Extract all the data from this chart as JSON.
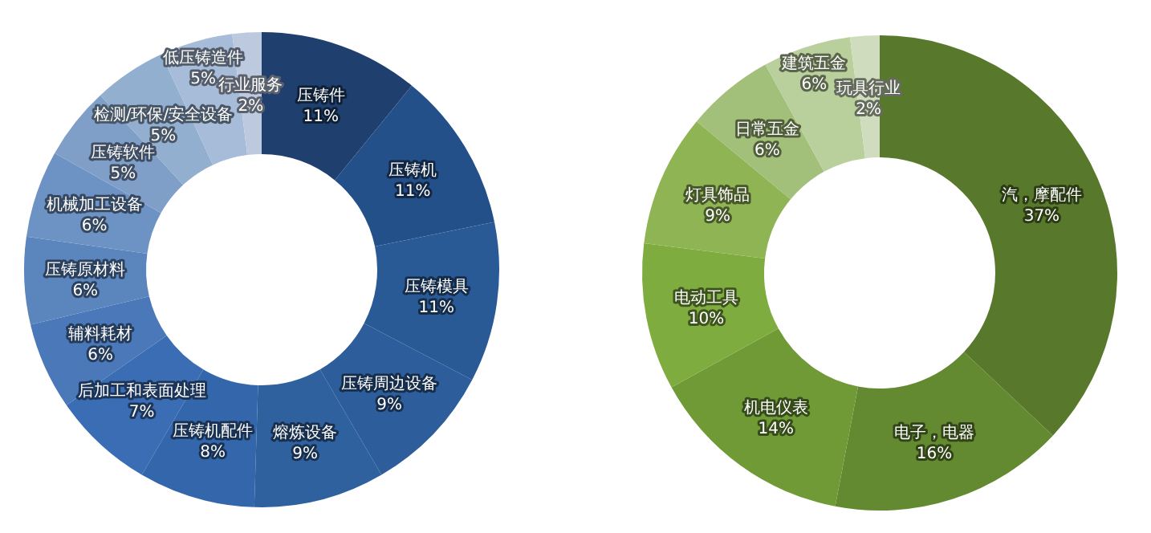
{
  "chart_data": [
    {
      "type": "donut",
      "categories": [
        "压铸件",
        "压铸机",
        "压铸模具",
        "压铸周边设备",
        "熔炼设备",
        "压铸机配件",
        "后加工和表面处理",
        "辅料耗材",
        "压铸原材料",
        "机械加工设备",
        "压铸软件",
        "检测/环保/安全设备",
        "低压铸造件",
        "行业服务"
      ],
      "values": [
        11,
        11,
        11,
        9,
        9,
        8,
        7,
        6,
        6,
        6,
        5,
        5,
        5,
        2
      ],
      "value_labels": [
        "11%",
        "11%",
        "11%",
        "9%",
        "9%",
        "8%",
        "7%",
        "6%",
        "6%",
        "6%",
        "5%",
        "5%",
        "5%",
        "2%"
      ],
      "colors": [
        "#1f3f6e",
        "#24508a",
        "#2a5a96",
        "#2d5d9a",
        "#30619f",
        "#3366aa",
        "#3a6db3",
        "#4a78b8",
        "#5a85bd",
        "#6d93c4",
        "#809fc8",
        "#93afd0",
        "#a7bcd8",
        "#bcc9de"
      ]
    },
    {
      "type": "donut",
      "categories": [
        "汽，摩配件",
        "电子，电器",
        "机电仪表",
        "电动工具",
        "灯具饰品",
        "日常五金",
        "建筑五金",
        "玩具行业"
      ],
      "values": [
        37,
        16,
        14,
        10,
        9,
        6,
        6,
        2
      ],
      "value_labels": [
        "37%",
        "16%",
        "14%",
        "10%",
        "9%",
        "6%",
        "6%",
        "2%"
      ],
      "colors": [
        "#58792b",
        "#638a30",
        "#6f9a36",
        "#7fac3e",
        "#8fb454",
        "#a3c07a",
        "#b9cf9c",
        "#cfdcbe"
      ]
    }
  ]
}
